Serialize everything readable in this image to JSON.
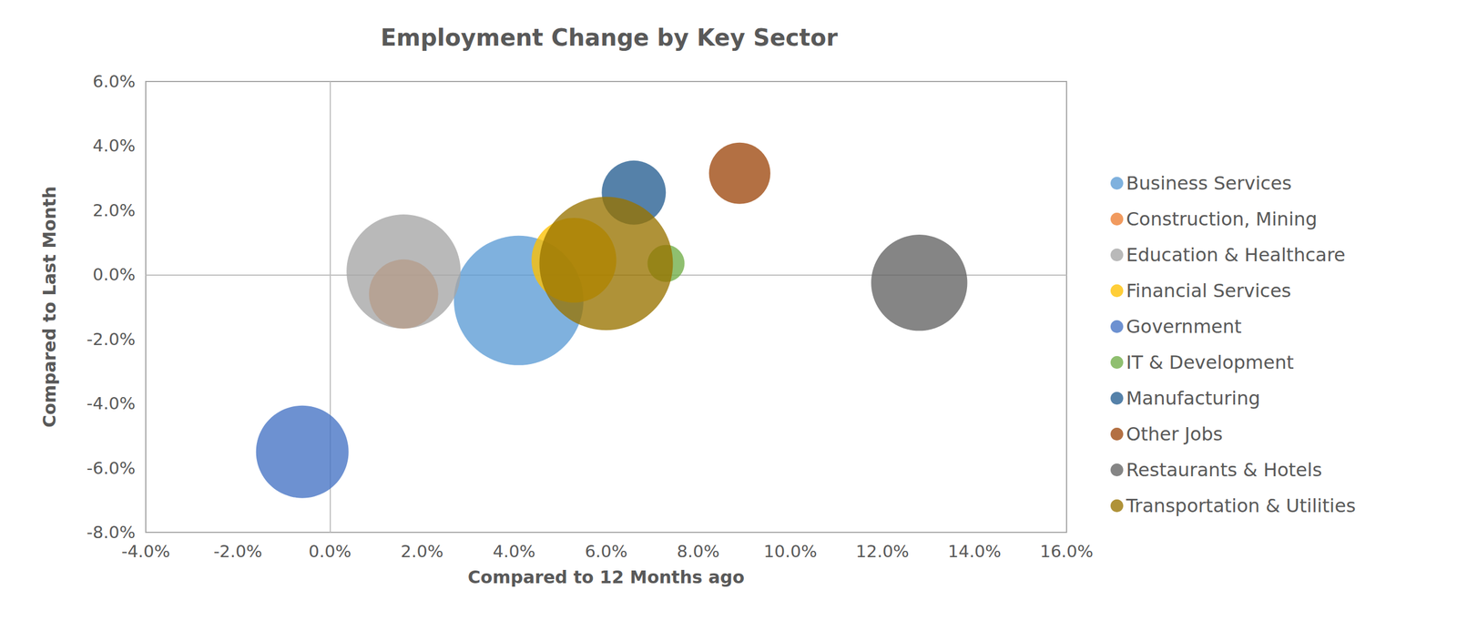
{
  "chart_data": {
    "type": "scatter",
    "title": "Employment Change by Key Sector",
    "x_label": "Compared to 12 Months ago",
    "y_label": "Compared to Last Month",
    "xlim": [
      -4,
      16
    ],
    "ylim": [
      -8,
      6
    ],
    "xticks": [
      {
        "value": -4,
        "label": "-4.0%"
      },
      {
        "value": -2,
        "label": "-2.0%"
      },
      {
        "value": 0,
        "label": "0.0%"
      },
      {
        "value": 2,
        "label": "2.0%"
      },
      {
        "value": 4,
        "label": "4.0%"
      },
      {
        "value": 6,
        "label": "6.0%"
      },
      {
        "value": 8,
        "label": "8.0%"
      },
      {
        "value": 10,
        "label": "10.0%"
      },
      {
        "value": 12,
        "label": "12.0%"
      },
      {
        "value": 14,
        "label": "14.0%"
      },
      {
        "value": 16,
        "label": "16.0%"
      }
    ],
    "yticks": [
      {
        "value": -8,
        "label": "-8.0%"
      },
      {
        "value": -6,
        "label": "-6.0%"
      },
      {
        "value": -4,
        "label": "-4.0%"
      },
      {
        "value": -2,
        "label": "-2.0%"
      },
      {
        "value": 0,
        "label": "0.0%"
      },
      {
        "value": 2,
        "label": "2.0%"
      },
      {
        "value": 4,
        "label": "4.0%"
      },
      {
        "value": 6,
        "label": "6.0%"
      }
    ],
    "grid": false,
    "legend": "right",
    "marker": "circle",
    "series": [
      {
        "name": "Business Services",
        "color": "#5b9bd5",
        "x": [
          4.1
        ],
        "values": [
          -0.8
        ],
        "sizes": [
          49
        ]
      },
      {
        "name": "Construction, Mining",
        "color": "#ed7d31",
        "x": [
          1.6
        ],
        "values": [
          -0.6
        ],
        "sizes": [
          14
        ]
      },
      {
        "name": "Education & Healthcare",
        "color": "#a5a5a5",
        "x": [
          1.6
        ],
        "values": [
          0.1
        ],
        "sizes": [
          38
        ]
      },
      {
        "name": "Financial Services",
        "color": "#ffc000",
        "x": [
          5.3
        ],
        "values": [
          0.45
        ],
        "sizes": [
          21
        ]
      },
      {
        "name": "Government",
        "color": "#4472c4",
        "x": [
          -0.6
        ],
        "values": [
          -5.5
        ],
        "sizes": [
          25
        ]
      },
      {
        "name": "IT & Development",
        "color": "#70ad47",
        "x": [
          7.3
        ],
        "values": [
          0.35
        ],
        "sizes": [
          4
        ]
      },
      {
        "name": "Manufacturing",
        "color": "#255e91",
        "x": [
          6.6
        ],
        "values": [
          2.55
        ],
        "sizes": [
          12
        ]
      },
      {
        "name": "Other Jobs",
        "color": "#9e480e",
        "x": [
          8.9
        ],
        "values": [
          3.15
        ],
        "sizes": [
          11
        ]
      },
      {
        "name": "Restaurants & Hotels",
        "color": "#636363",
        "x": [
          12.8
        ],
        "values": [
          -0.25
        ],
        "sizes": [
          27
        ]
      },
      {
        "name": "Transportation & Utilities",
        "color": "#997300",
        "x": [
          6.0
        ],
        "values": [
          0.35
        ],
        "sizes": [
          52
        ]
      }
    ]
  }
}
